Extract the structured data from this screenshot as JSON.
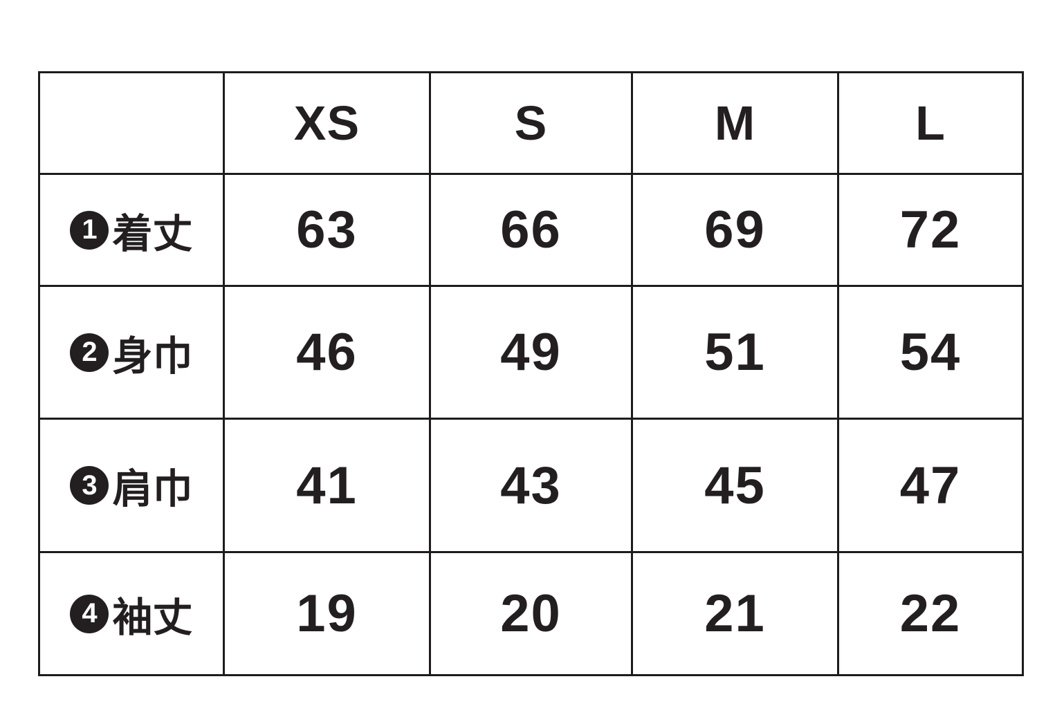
{
  "chart_data": {
    "type": "table",
    "columns": [
      "",
      "XS",
      "S",
      "M",
      "L"
    ],
    "rows": [
      {
        "marker": "1",
        "label": "着丈",
        "values": [
          63,
          66,
          69,
          72
        ]
      },
      {
        "marker": "2",
        "label": "身巾",
        "values": [
          46,
          49,
          51,
          54
        ]
      },
      {
        "marker": "3",
        "label": "肩巾",
        "values": [
          41,
          43,
          45,
          47
        ]
      },
      {
        "marker": "4",
        "label": "袖丈",
        "values": [
          19,
          20,
          21,
          22
        ]
      }
    ],
    "layout": {
      "grid": "on",
      "legend": "none"
    },
    "colors": {
      "text": "#231f20",
      "border": "#1d1b1b",
      "background": "#ffffff",
      "marker_fill": "#231f20",
      "marker_text": "#ffffff"
    }
  }
}
